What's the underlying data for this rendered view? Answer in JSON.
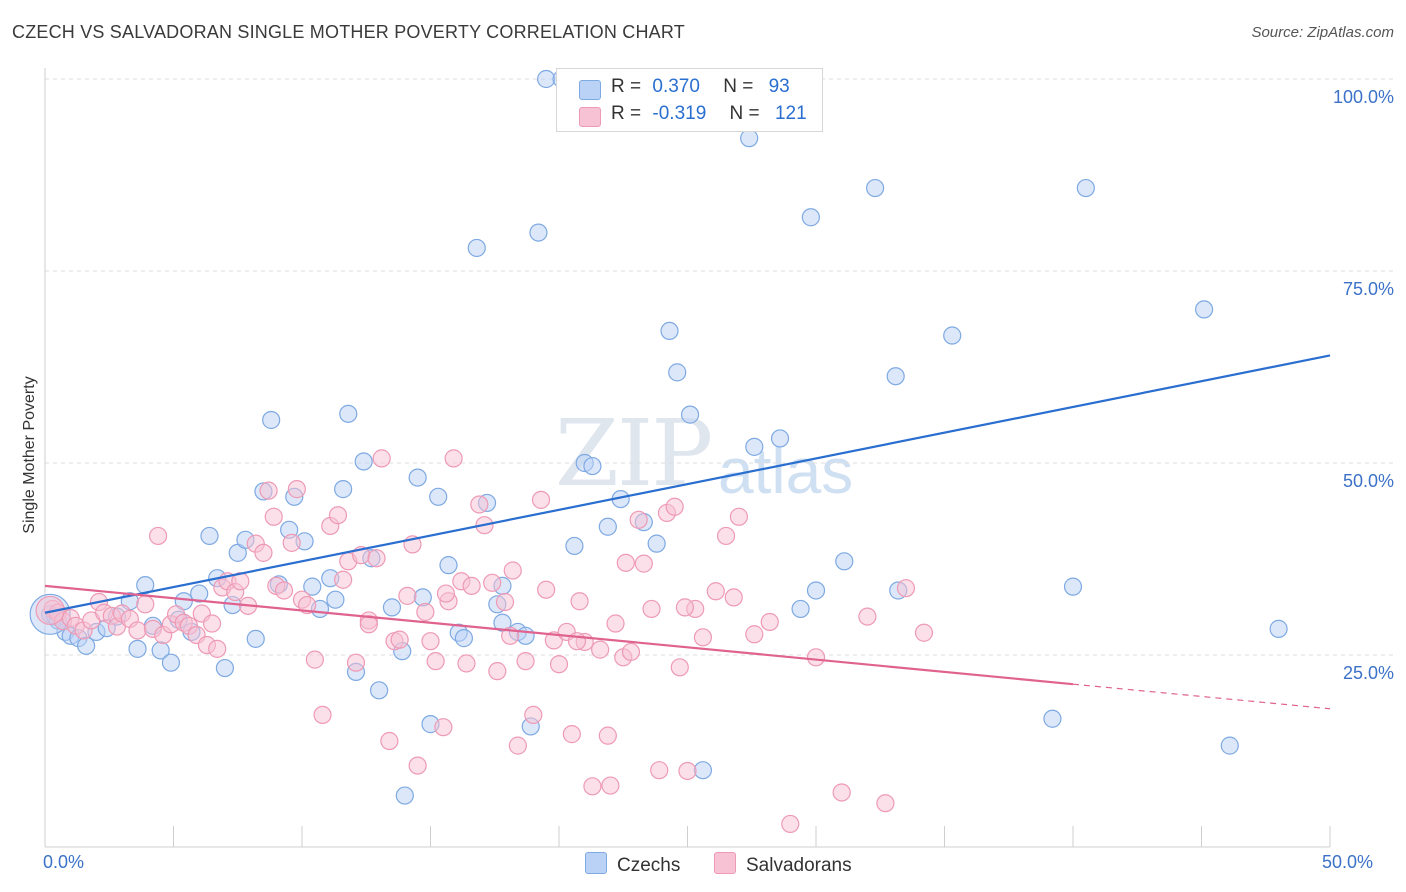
{
  "header": {
    "title": "CZECH VS SALVADORAN SINGLE MOTHER POVERTY CORRELATION CHART",
    "source": "Source: ZipAtlas.com"
  },
  "watermark": {
    "zip": "ZIP",
    "atlas": "atlas"
  },
  "stats_box": {
    "czech": {
      "r_label": "R =",
      "r_value": "0.370",
      "n_label": "N =",
      "n_value": "93"
    },
    "salvadoran": {
      "r_label": "R =",
      "r_value": "-0.319",
      "n_label": "N =",
      "n_value": "121"
    }
  },
  "legend": {
    "czech_label": "Czechs",
    "salvadoran_label": "Salvadorans"
  },
  "colors": {
    "czech_fill": "#b9d2f5",
    "czech_stroke": "#7ea9e2",
    "czech_line": "#2a6fd0",
    "salv_fill": "#f7c2d3",
    "salv_stroke": "#ee9ab5",
    "salv_line": "#e0628f",
    "grid": "#dcdcdc",
    "tick_text": "#3b72c8"
  },
  "chart_data": {
    "type": "scatter",
    "title": "CZECH VS SALVADORAN SINGLE MOTHER POVERTY CORRELATION CHART",
    "xlabel": "",
    "ylabel": "Single Mother Poverty",
    "xlim": [
      0,
      50
    ],
    "ylim": [
      0,
      103
    ],
    "x_tick_labels": [
      "0.0%",
      "50.0%"
    ],
    "y_ticks": [
      25,
      50,
      75,
      100
    ],
    "y_tick_labels": [
      "25.0%",
      "50.0%",
      "75.0%",
      "100.0%"
    ],
    "grid": true,
    "legend_position": "bottom-center",
    "series": [
      {
        "name": "Czechs",
        "r": 0.37,
        "n": 93,
        "trend": {
          "x": [
            0,
            50
          ],
          "y": [
            30.5,
            64.0
          ],
          "dashed_from_x": null
        },
        "points": [
          [
            0.2,
            30.3
          ],
          [
            0.4,
            30.0
          ],
          [
            0.5,
            29.5
          ],
          [
            0.8,
            28.0
          ],
          [
            1.0,
            27.5
          ],
          [
            1.3,
            27.2
          ],
          [
            1.6,
            26.2
          ],
          [
            2.0,
            28.0
          ],
          [
            2.4,
            28.5
          ],
          [
            2.8,
            30.0
          ],
          [
            3.3,
            32.0
          ],
          [
            3.6,
            25.8
          ],
          [
            3.9,
            34.1
          ],
          [
            4.2,
            28.8
          ],
          [
            4.5,
            25.6
          ],
          [
            4.9,
            24.0
          ],
          [
            5.2,
            29.6
          ],
          [
            5.4,
            32.0
          ],
          [
            5.7,
            28.0
          ],
          [
            6.0,
            33.0
          ],
          [
            6.4,
            40.5
          ],
          [
            6.7,
            35.0
          ],
          [
            7.0,
            23.3
          ],
          [
            7.3,
            31.5
          ],
          [
            7.5,
            38.3
          ],
          [
            7.8,
            40.0
          ],
          [
            8.2,
            27.1
          ],
          [
            8.5,
            46.3
          ],
          [
            8.8,
            55.6
          ],
          [
            9.1,
            34.2
          ],
          [
            9.5,
            41.3
          ],
          [
            9.7,
            45.6
          ],
          [
            10.1,
            39.8
          ],
          [
            10.4,
            33.9
          ],
          [
            10.7,
            31.0
          ],
          [
            11.1,
            35.0
          ],
          [
            11.3,
            32.2
          ],
          [
            11.6,
            46.6
          ],
          [
            11.8,
            56.4
          ],
          [
            12.1,
            22.8
          ],
          [
            12.4,
            50.2
          ],
          [
            12.7,
            37.6
          ],
          [
            13.0,
            20.4
          ],
          [
            13.5,
            31.2
          ],
          [
            13.9,
            25.5
          ],
          [
            14.0,
            6.7
          ],
          [
            14.5,
            48.1
          ],
          [
            14.7,
            32.5
          ],
          [
            15.0,
            16.0
          ],
          [
            15.3,
            45.6
          ],
          [
            15.7,
            36.7
          ],
          [
            16.1,
            27.9
          ],
          [
            16.3,
            27.2
          ],
          [
            16.8,
            78.0
          ],
          [
            17.2,
            44.8
          ],
          [
            17.6,
            31.6
          ],
          [
            17.8,
            29.2
          ],
          [
            18.4,
            28.0
          ],
          [
            18.7,
            27.5
          ],
          [
            18.9,
            15.7
          ],
          [
            19.2,
            80.0
          ],
          [
            19.5,
            100.0
          ],
          [
            20.1,
            100.0
          ],
          [
            20.6,
            39.2
          ],
          [
            21.0,
            50.0
          ],
          [
            21.3,
            49.6
          ],
          [
            21.9,
            41.7
          ],
          [
            22.4,
            45.3
          ],
          [
            23.3,
            42.3
          ],
          [
            23.8,
            39.5
          ],
          [
            24.2,
            100.0
          ],
          [
            24.3,
            67.2
          ],
          [
            24.6,
            61.8
          ],
          [
            25.1,
            56.3
          ],
          [
            25.6,
            10.0
          ],
          [
            27.4,
            92.3
          ],
          [
            27.6,
            52.1
          ],
          [
            28.6,
            53.2
          ],
          [
            29.4,
            31.0
          ],
          [
            29.8,
            82.0
          ],
          [
            30.0,
            33.4
          ],
          [
            31.1,
            37.2
          ],
          [
            32.3,
            85.8
          ],
          [
            33.1,
            61.3
          ],
          [
            33.2,
            33.4
          ],
          [
            35.3,
            66.6
          ],
          [
            39.2,
            16.7
          ],
          [
            40.0,
            33.9
          ],
          [
            40.5,
            85.8
          ],
          [
            45.1,
            70.0
          ],
          [
            46.1,
            13.2
          ],
          [
            48.0,
            28.4
          ],
          [
            17.8,
            34.0
          ]
        ]
      },
      {
        "name": "Salvadorans",
        "r": -0.319,
        "n": 121,
        "trend": {
          "x": [
            0,
            50
          ],
          "y": [
            34.0,
            18.0
          ],
          "dashed_from_x": 40
        },
        "points": [
          [
            0.3,
            31.0
          ],
          [
            0.5,
            30.5
          ],
          [
            0.7,
            29.4
          ],
          [
            1.0,
            29.8
          ],
          [
            1.2,
            28.8
          ],
          [
            1.5,
            28.2
          ],
          [
            1.8,
            29.5
          ],
          [
            2.1,
            31.9
          ],
          [
            2.3,
            30.5
          ],
          [
            2.6,
            30.1
          ],
          [
            2.8,
            28.7
          ],
          [
            3.0,
            30.4
          ],
          [
            3.3,
            29.7
          ],
          [
            3.6,
            28.2
          ],
          [
            3.9,
            31.6
          ],
          [
            4.2,
            28.4
          ],
          [
            4.4,
            40.5
          ],
          [
            4.6,
            27.6
          ],
          [
            4.9,
            29.0
          ],
          [
            5.1,
            30.3
          ],
          [
            5.4,
            29.2
          ],
          [
            5.6,
            28.8
          ],
          [
            5.9,
            27.6
          ],
          [
            6.1,
            30.4
          ],
          [
            6.3,
            26.3
          ],
          [
            6.5,
            29.1
          ],
          [
            6.7,
            25.8
          ],
          [
            6.9,
            33.8
          ],
          [
            7.1,
            34.6
          ],
          [
            7.4,
            33.2
          ],
          [
            7.6,
            34.6
          ],
          [
            7.9,
            31.4
          ],
          [
            8.2,
            39.5
          ],
          [
            8.5,
            38.3
          ],
          [
            8.7,
            46.4
          ],
          [
            9.0,
            34.0
          ],
          [
            9.3,
            33.4
          ],
          [
            9.6,
            39.6
          ],
          [
            9.8,
            46.6
          ],
          [
            10.0,
            32.2
          ],
          [
            10.2,
            31.5
          ],
          [
            10.5,
            24.4
          ],
          [
            10.8,
            17.2
          ],
          [
            11.1,
            41.8
          ],
          [
            11.4,
            43.2
          ],
          [
            11.6,
            34.8
          ],
          [
            11.8,
            37.2
          ],
          [
            12.1,
            24.0
          ],
          [
            12.3,
            38.0
          ],
          [
            12.6,
            29.5
          ],
          [
            12.9,
            37.6
          ],
          [
            13.1,
            50.6
          ],
          [
            13.4,
            13.8
          ],
          [
            13.6,
            26.8
          ],
          [
            13.8,
            27.0
          ],
          [
            14.1,
            32.7
          ],
          [
            14.3,
            39.4
          ],
          [
            14.5,
            10.6
          ],
          [
            14.8,
            30.6
          ],
          [
            15.0,
            26.8
          ],
          [
            15.2,
            24.2
          ],
          [
            15.5,
            15.6
          ],
          [
            15.7,
            32.0
          ],
          [
            15.9,
            50.6
          ],
          [
            16.2,
            34.6
          ],
          [
            16.4,
            23.9
          ],
          [
            16.6,
            34.0
          ],
          [
            16.9,
            44.6
          ],
          [
            17.1,
            41.9
          ],
          [
            17.4,
            34.4
          ],
          [
            17.6,
            22.9
          ],
          [
            17.9,
            31.9
          ],
          [
            18.1,
            27.5
          ],
          [
            18.4,
            13.2
          ],
          [
            18.7,
            24.2
          ],
          [
            19.0,
            17.2
          ],
          [
            19.3,
            45.2
          ],
          [
            19.5,
            33.5
          ],
          [
            19.8,
            26.9
          ],
          [
            20.0,
            23.8
          ],
          [
            20.3,
            28.0
          ],
          [
            20.5,
            14.7
          ],
          [
            20.8,
            32.0
          ],
          [
            21.0,
            26.7
          ],
          [
            21.3,
            7.9
          ],
          [
            21.6,
            25.7
          ],
          [
            21.9,
            14.5
          ],
          [
            22.0,
            8.0
          ],
          [
            22.2,
            29.1
          ],
          [
            22.5,
            24.7
          ],
          [
            22.8,
            25.4
          ],
          [
            23.1,
            42.6
          ],
          [
            23.3,
            36.9
          ],
          [
            23.6,
            31.0
          ],
          [
            23.9,
            10.0
          ],
          [
            24.2,
            43.5
          ],
          [
            24.5,
            44.3
          ],
          [
            24.7,
            23.4
          ],
          [
            25.0,
            9.9
          ],
          [
            25.3,
            31.0
          ],
          [
            25.6,
            27.3
          ],
          [
            26.1,
            33.3
          ],
          [
            26.5,
            40.5
          ],
          [
            27.0,
            43.0
          ],
          [
            27.6,
            27.7
          ],
          [
            28.2,
            29.3
          ],
          [
            29.0,
            3.0
          ],
          [
            30.0,
            24.7
          ],
          [
            31.0,
            7.1
          ],
          [
            32.0,
            30.0
          ],
          [
            32.7,
            5.7
          ],
          [
            33.5,
            33.7
          ],
          [
            34.2,
            27.9
          ],
          [
            8.9,
            43.0
          ],
          [
            12.6,
            29.0
          ],
          [
            15.6,
            33.0
          ],
          [
            18.2,
            36.0
          ],
          [
            20.7,
            26.8
          ],
          [
            22.6,
            37.0
          ],
          [
            24.9,
            31.2
          ],
          [
            26.8,
            32.5
          ]
        ]
      }
    ]
  }
}
